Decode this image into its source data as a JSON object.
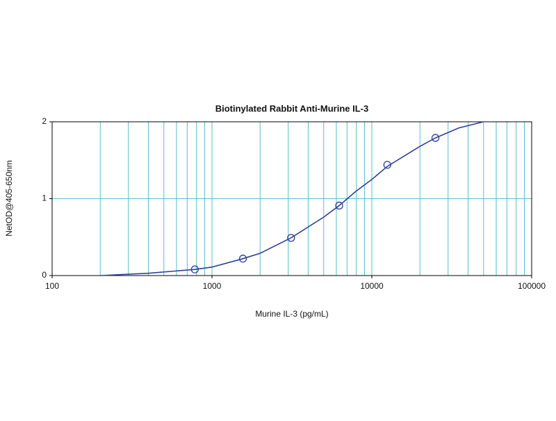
{
  "chart_data": {
    "type": "scatter",
    "title": "Biotinylated Rabbit Anti-Murine IL-3",
    "x_label": "Murine IL-3 (pg/mL)",
    "y_label": "NetOD@405-650nm",
    "xscale": "log",
    "xlim": [
      100,
      100000
    ],
    "xticks": [
      100,
      1000,
      10000,
      100000
    ],
    "xminorticks": [
      200,
      300,
      400,
      500,
      600,
      700,
      800,
      900,
      1000,
      2000,
      3000,
      4000,
      5000,
      6000,
      7000,
      8000,
      9000,
      10000,
      20000,
      30000,
      40000,
      50000,
      60000,
      70000,
      80000,
      90000
    ],
    "ylim": [
      0,
      2
    ],
    "yticks": [
      0,
      1,
      2
    ],
    "ygrid": [
      1
    ],
    "grid": true,
    "grid_color": "#5bbccb",
    "series": [
      {
        "type": "scatter",
        "color": "#2e3f95",
        "x": [
          781.25,
          1562.5,
          3125,
          6250,
          12500,
          25000
        ],
        "values": [
          0.08,
          0.22,
          0.49,
          0.91,
          1.44,
          1.79
        ]
      },
      {
        "type": "line",
        "color": "#2e3f95",
        "x": [
          200,
          400,
          781.25,
          1000,
          1562.5,
          2000,
          3125,
          5000,
          6250,
          8000,
          10000,
          12500,
          20000,
          25000,
          35000,
          50000
        ],
        "values": [
          0.0,
          0.03,
          0.08,
          0.11,
          0.22,
          0.29,
          0.49,
          0.76,
          0.91,
          1.1,
          1.25,
          1.42,
          1.68,
          1.79,
          1.92,
          2.0
        ]
      }
    ]
  }
}
